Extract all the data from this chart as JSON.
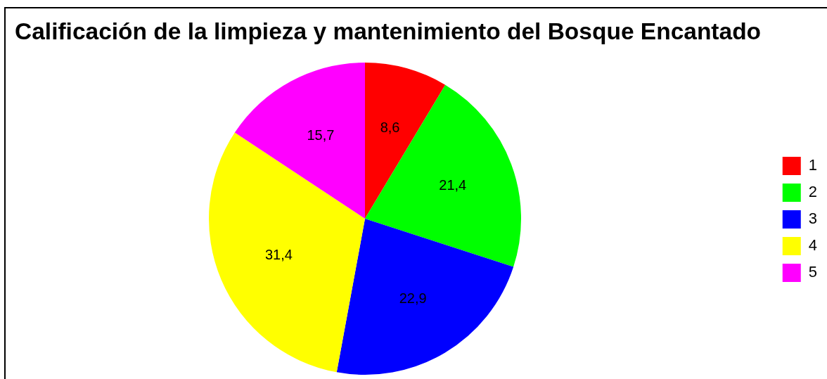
{
  "chart_data": {
    "type": "pie",
    "title": "Calificación de la limpieza y mantenimiento del Bosque Encantado",
    "categories": [
      "1",
      "2",
      "3",
      "4",
      "5"
    ],
    "values": [
      8.6,
      21.4,
      22.9,
      31.4,
      15.7
    ],
    "colors": [
      "#ff0000",
      "#00ff00",
      "#0000ff",
      "#ffff00",
      "#ff00ff"
    ],
    "value_labels": [
      "8,6",
      "21,4",
      "22,9",
      "31,4",
      "15,7"
    ],
    "legend": "right"
  }
}
